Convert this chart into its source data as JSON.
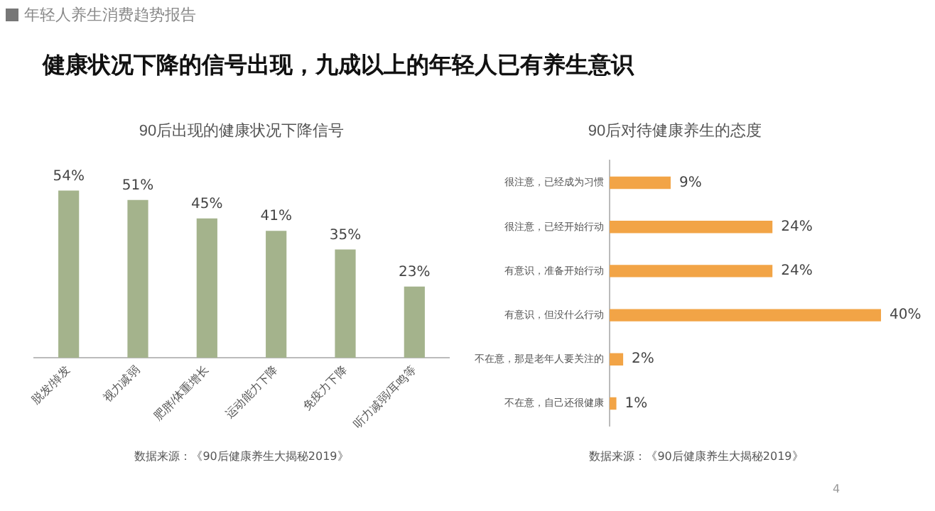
{
  "chart_data": [
    {
      "type": "bar",
      "title": "90后出现的健康状况下降信号",
      "categories": [
        "脱发/掉发",
        "视力减弱",
        "肥胖/体重增长",
        "运动能力下降",
        "免疫力下降",
        "听力减弱/耳鸣等"
      ],
      "values": [
        54,
        51,
        45,
        41,
        35,
        23
      ],
      "value_labels": [
        "54%",
        "51%",
        "45%",
        "41%",
        "35%",
        "23%"
      ],
      "color": "#a4b38c",
      "annotations": [
        "年轻人养生消费趋势报告",
        "健康状况下降的信号出现，九成以上的年轻人已有养生意识",
        "数据来源：《90后健康养生大揭秘2019》"
      ]
    },
    {
      "type": "bar",
      "orientation": "horizontal",
      "title": "90后对待健康养生的态度",
      "categories": [
        "很注意，已经成为习惯",
        "很注意，已经开始行动",
        "有意识，准备开始行动",
        "有意识，但没什么行动",
        "不在意，那是老年人要关注的",
        "不在意，自己还很健康"
      ],
      "values": [
        9,
        24,
        24,
        40,
        2,
        1
      ],
      "value_labels": [
        "9%",
        "24%",
        "24%",
        "40%",
        "2%",
        "1%"
      ],
      "color": "#f2a446",
      "annotations": [
        "数据来源：《90后健康养生大揭秘2019》",
        "4"
      ]
    }
  ]
}
